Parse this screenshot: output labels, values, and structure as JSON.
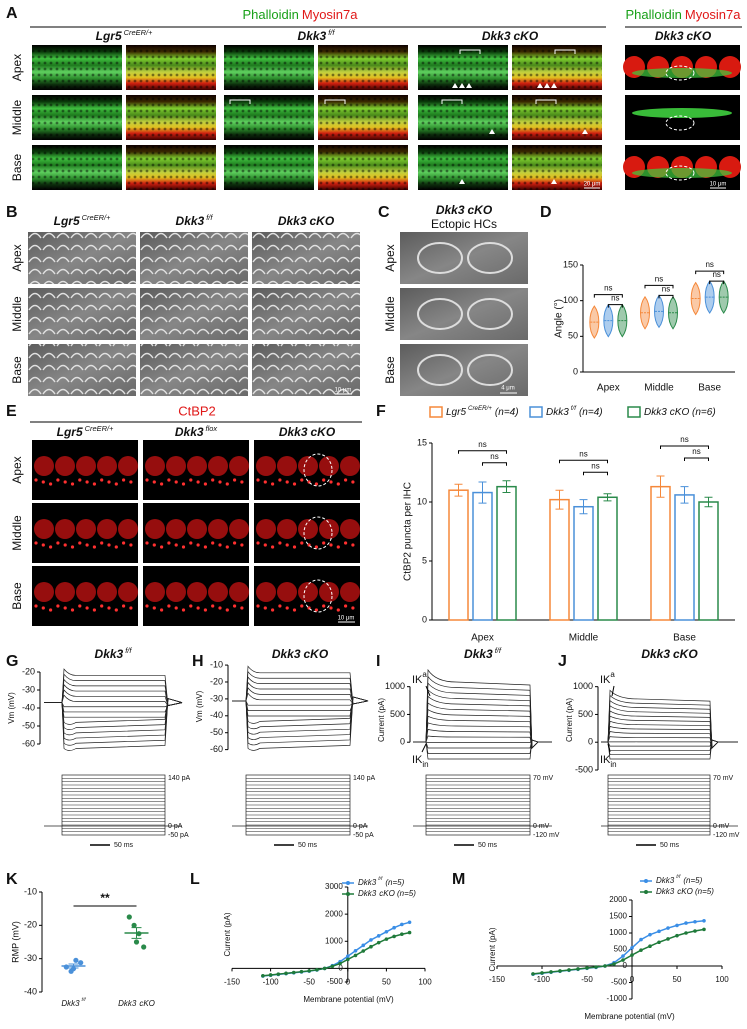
{
  "panel_labels": [
    "A",
    "B",
    "C",
    "D",
    "E",
    "F",
    "G",
    "H",
    "I",
    "J",
    "K",
    "L",
    "M"
  ],
  "panel_a": {
    "header": {
      "green": "Phalloidin",
      "red": "Myosin7a"
    },
    "groups": [
      {
        "gene": "Lgr5",
        "sup": "CreER/+"
      },
      {
        "gene": "Dkk3",
        "sup": "f/f"
      },
      {
        "gene": "Dkk3",
        "text": "cKO"
      }
    ],
    "rows": [
      "Apex",
      "Middle",
      "Base"
    ],
    "zoom_header": {
      "green": "Phalloidin",
      "red": "Myosin7a"
    },
    "zoom_group": {
      "gene": "Dkk3",
      "text": "cKO"
    },
    "scale_bars": [
      "20 μm",
      "10 μm"
    ]
  },
  "panel_b": {
    "columns": [
      {
        "gene": "Lgr5",
        "sup": "CreER/+"
      },
      {
        "gene": "Dkk3",
        "sup": "f/f"
      },
      {
        "gene": "Dkk3",
        "text": "cKO"
      }
    ],
    "rows": [
      "Apex",
      "Middle",
      "Base"
    ],
    "scale_bar": "10 μm"
  },
  "panel_c": {
    "title": {
      "gene": "Dkk3",
      "text": "cKO"
    },
    "subtitle": "Ectopic HCs",
    "rows": [
      "Apex",
      "Middle",
      "Base"
    ],
    "scale_bar": "4 μm"
  },
  "panel_e": {
    "header": "CtBP2",
    "columns": [
      {
        "gene": "Lgr5",
        "sup": "CreER/+"
      },
      {
        "gene": "Dkk3",
        "sup": "flox"
      },
      {
        "gene": "Dkk3",
        "text": "cKO"
      }
    ],
    "rows": [
      "Apex",
      "Middle",
      "Base"
    ],
    "scale_bar": "10 μm"
  },
  "chart_data": [
    {
      "type": "violin",
      "ylabel": "Angle (°)",
      "categories": [
        "Apex",
        "Middle",
        "Base"
      ],
      "series": [
        {
          "color": "#f5883a",
          "values": [
            70,
            83,
            103
          ]
        },
        {
          "color": "#4a90d9",
          "values": [
            72,
            85,
            105
          ]
        },
        {
          "color": "#2a8a4a",
          "values": [
            72,
            83,
            105
          ]
        }
      ],
      "ylim": [
        0,
        150
      ],
      "yticks": [
        0,
        50,
        100,
        150
      ],
      "significance": [
        "ns",
        "ns",
        "ns",
        "ns",
        "ns",
        "ns"
      ]
    },
    {
      "type": "bar",
      "ylabel": "CtBP2 puncta per IHC",
      "categories": [
        "Apex",
        "Middle",
        "Base"
      ],
      "series": [
        {
          "name": {
            "gene": "Lgr5",
            "sup": "CreER/+",
            "text": "(n=4)"
          },
          "color": "#f5883a",
          "values": [
            11.0,
            10.2,
            11.3
          ],
          "errors": [
            0.5,
            0.8,
            0.9
          ]
        },
        {
          "name": {
            "gene": "Dkk3",
            "sup": "f/f",
            "text": "(n=4)"
          },
          "color": "#4a90d9",
          "values": [
            10.8,
            9.6,
            10.6
          ],
          "errors": [
            0.9,
            0.6,
            0.7
          ]
        },
        {
          "name": {
            "gene": "Dkk3",
            "text": "cKO (n=6)"
          },
          "color": "#2a8a4a",
          "values": [
            11.3,
            10.4,
            10.0
          ],
          "errors": [
            0.5,
            0.3,
            0.4
          ]
        }
      ],
      "ylim": [
        0,
        15
      ],
      "yticks": [
        0,
        5,
        10,
        15
      ],
      "significance": [
        "ns",
        "ns",
        "ns",
        "ns",
        "ns",
        "ns"
      ]
    },
    {
      "type": "dot",
      "ylabel": "RMP (mV)",
      "categories": [
        {
          "gene": "Dkk3",
          "sup": "f/f"
        },
        {
          "gene": "Dkk3",
          "text": "cKO"
        }
      ],
      "colors": [
        "#4a90d9",
        "#2a8a4a"
      ],
      "values": [
        [
          -32.5,
          -33.8,
          -30.5,
          -31.2,
          -33.0
        ],
        [
          -17.5,
          -20.0,
          -22.5,
          -26.5,
          -25.0
        ]
      ],
      "means": [
        -32.2,
        -22.3
      ],
      "errors": [
        0.6,
        1.6
      ],
      "ylim": [
        -40,
        -10
      ],
      "yticks": [
        -40,
        -30,
        -20,
        -10
      ],
      "significance": "**"
    },
    {
      "type": "line",
      "xlabel": "Membrane potential (mV)",
      "ylabel": "Current (pA)",
      "x": [
        -110,
        -100,
        -90,
        -80,
        -70,
        -60,
        -50,
        -40,
        -30,
        -20,
        -10,
        0,
        10,
        20,
        30,
        40,
        50,
        60,
        70,
        80
      ],
      "series": [
        {
          "name": {
            "gene": "Dkk3",
            "sup": "f/f",
            "text": "(n=5)"
          },
          "color": "#3a8ee6",
          "values": [
            -280,
            -250,
            -220,
            -190,
            -160,
            -130,
            -100,
            -60,
            0,
            100,
            250,
            450,
            650,
            850,
            1050,
            1200,
            1350,
            1500,
            1620,
            1700
          ]
        },
        {
          "name": {
            "gene": "Dkk3",
            "text": "cKO (n=5)"
          },
          "color": "#1f7a3a",
          "values": [
            -270,
            -240,
            -210,
            -180,
            -150,
            -120,
            -90,
            -50,
            0,
            80,
            180,
            330,
            480,
            640,
            800,
            950,
            1080,
            1180,
            1260,
            1320
          ]
        }
      ],
      "xlim": [
        -150,
        100
      ],
      "xticks": [
        -150,
        -100,
        -50,
        0,
        50,
        100
      ],
      "ylim": [
        -500,
        3000
      ],
      "yticks": [
        -500,
        0,
        1000,
        2000,
        3000
      ]
    },
    {
      "type": "line",
      "xlabel": "Membrane potential (mV)",
      "ylabel": "Current (pA)",
      "x": [
        -110,
        -100,
        -90,
        -80,
        -70,
        -60,
        -50,
        -40,
        -30,
        -20,
        -10,
        0,
        10,
        20,
        30,
        40,
        50,
        60,
        70,
        80
      ],
      "series": [
        {
          "name": {
            "gene": "Dkk3",
            "sup": "f/f",
            "text": "(n=5)"
          },
          "color": "#3a8ee6",
          "values": [
            -250,
            -220,
            -190,
            -160,
            -130,
            -100,
            -70,
            -40,
            0,
            100,
            300,
            550,
            800,
            950,
            1050,
            1150,
            1230,
            1300,
            1340,
            1370
          ]
        },
        {
          "name": {
            "gene": "Dkk3",
            "text": "cKO (n=5)"
          },
          "color": "#1f7a3a",
          "values": [
            -240,
            -210,
            -180,
            -150,
            -120,
            -90,
            -60,
            -30,
            0,
            60,
            180,
            330,
            480,
            600,
            720,
            820,
            920,
            1000,
            1060,
            1110
          ]
        }
      ],
      "xlim": [
        -150,
        100
      ],
      "xticks": [
        -150,
        -100,
        -50,
        0,
        50,
        100
      ],
      "ylim": [
        -1000,
        2000
      ],
      "yticks": [
        -1000,
        -500,
        0,
        500,
        1000,
        1500,
        2000
      ]
    },
    {
      "type": "trace",
      "kind": "voltage",
      "title": {
        "gene": "Dkk3",
        "sup": "f/f"
      },
      "ylabel": "Vm (mV)",
      "ylim": [
        -65,
        -15
      ],
      "yticks": [
        -20,
        -30,
        -40,
        -50,
        -60
      ],
      "stimulus": [
        "140 pA",
        "0 pA",
        "-50 pA"
      ],
      "scale_bar": "50 ms"
    },
    {
      "type": "trace",
      "kind": "voltage",
      "title": {
        "gene": "Dkk3",
        "text": "cKO"
      },
      "ylabel": "Vm (mV)",
      "ylim": [
        -62,
        -7
      ],
      "yticks": [
        -10,
        -20,
        -30,
        -40,
        -50,
        -60
      ],
      "stimulus": [
        "140 pA",
        "0 pA",
        "-50 pA"
      ],
      "scale_bar": "50 ms"
    },
    {
      "type": "trace",
      "kind": "current",
      "title": {
        "gene": "Dkk3",
        "sup": "f/f"
      },
      "ylabel": "Current (pA)",
      "ylim": [
        -500,
        1300
      ],
      "yticks": [
        0,
        500,
        1000
      ],
      "markers": [
        {
          "text": "IK",
          "sup": "a"
        },
        {
          "text": "IK",
          "sub": "in"
        }
      ],
      "stimulus": [
        "70 mV",
        "0 mV",
        "-120 mV"
      ],
      "scale_bar": "50 ms"
    },
    {
      "type": "trace",
      "kind": "current",
      "title": {
        "gene": "Dkk3",
        "text": "cKO"
      },
      "ylabel": "Current (pA)",
      "ylim": [
        -500,
        1300
      ],
      "yticks": [
        -500,
        0,
        500,
        1000
      ],
      "markers": [
        {
          "text": "IK",
          "sup": "a"
        },
        {
          "text": "IK",
          "sub": "in"
        }
      ],
      "stimulus": [
        "70 mV",
        "0 mV",
        "-120 mV"
      ],
      "scale_bar": "50 ms"
    }
  ]
}
